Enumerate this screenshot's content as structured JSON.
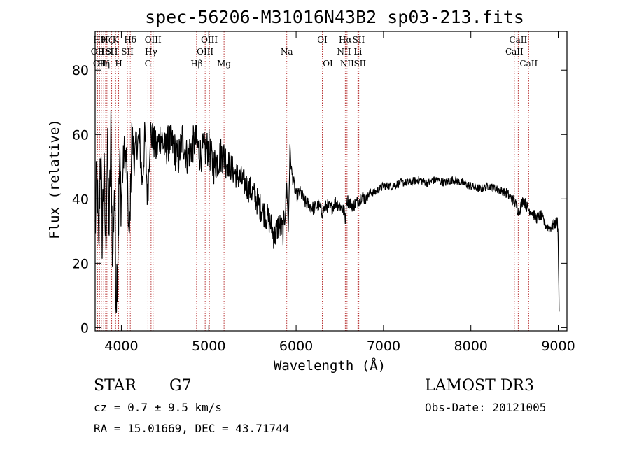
{
  "chart_data": {
    "type": "line",
    "title": "spec-56206-M31016N43B2_sp03-213.fits",
    "xlabel": "Wavelength (Å)",
    "ylabel": "Flux (relative)",
    "xlim": [
      3700,
      9100
    ],
    "ylim": [
      -1,
      92
    ],
    "xticks": [
      4000,
      5000,
      6000,
      7000,
      8000,
      9000
    ],
    "xtick_labels": [
      "4000",
      "5000",
      "6000",
      "7000",
      "8000",
      "9000"
    ],
    "yticks": [
      0,
      20,
      40,
      60,
      80
    ],
    "ytick_labels": [
      "0",
      "20",
      "40",
      "60",
      "80"
    ],
    "line_color": "#000000",
    "marker_color": "#b22222",
    "series": [
      {
        "name": "spectrum",
        "x": [
          3700,
          3720,
          3740,
          3760,
          3780,
          3800,
          3820,
          3840,
          3860,
          3880,
          3900,
          3920,
          3940,
          3960,
          3980,
          4000,
          4030,
          4060,
          4090,
          4120,
          4150,
          4180,
          4210,
          4240,
          4270,
          4300,
          4330,
          4360,
          4400,
          4450,
          4500,
          4550,
          4600,
          4650,
          4700,
          4750,
          4800,
          4850,
          4900,
          4950,
          5000,
          5050,
          5100,
          5150,
          5200,
          5300,
          5400,
          5500,
          5600,
          5700,
          5750,
          5800,
          5850,
          5880,
          5895,
          5910,
          5930,
          5950,
          6000,
          6050,
          6100,
          6150,
          6200,
          6250,
          6300,
          6350,
          6400,
          6450,
          6500,
          6550,
          6563,
          6580,
          6600,
          6650,
          6700,
          6750,
          6800,
          6850,
          6900,
          7000,
          7100,
          7200,
          7300,
          7400,
          7500,
          7600,
          7700,
          7800,
          7900,
          8000,
          8100,
          8200,
          8300,
          8400,
          8500,
          8550,
          8600,
          8650,
          8700,
          8750,
          8800,
          8850,
          8900,
          8950,
          8990,
          9000,
          9010
        ],
        "y": [
          30,
          48,
          22,
          58,
          30,
          50,
          25,
          57,
          30,
          60,
          20,
          45,
          10,
          25,
          50,
          40,
          55,
          52,
          25,
          60,
          52,
          58,
          57,
          45,
          60,
          40,
          61,
          58,
          55,
          60,
          55,
          58,
          56,
          52,
          59,
          53,
          56,
          58,
          54,
          55,
          56,
          50,
          52,
          54,
          52,
          48,
          45,
          42,
          37,
          33,
          28,
          32,
          30,
          38,
          45,
          30,
          55,
          48,
          41,
          42,
          39,
          38,
          37,
          38,
          36,
          38,
          37,
          39,
          38,
          36,
          34,
          40,
          39,
          38,
          39,
          41,
          40,
          42,
          42,
          44,
          44,
          45,
          45,
          46,
          45,
          46,
          45,
          46,
          45,
          44,
          43,
          44,
          43,
          42,
          39,
          36,
          40,
          37,
          36,
          34,
          35,
          32,
          31,
          32,
          33,
          28,
          5
        ]
      }
    ],
    "line_markers": [
      {
        "x": 3727,
        "label": "OII",
        "row": 1
      },
      {
        "x": 3750,
        "label": "Hθ",
        "row": 0
      },
      {
        "x": 3771,
        "label": "OIII",
        "row": 2
      },
      {
        "x": 3798,
        "label": "Hη",
        "row": 2
      },
      {
        "x": 3820,
        "label": "HeI",
        "row": 1
      },
      {
        "x": 3835,
        "label": "Hζ",
        "row": 0
      },
      {
        "x": 3889,
        "label": "SII",
        "row": 1
      },
      {
        "x": 3934,
        "label": "K",
        "row": 0
      },
      {
        "x": 3969,
        "label": "H",
        "row": 2
      },
      {
        "x": 4102,
        "label": "Hδ",
        "row": 0
      },
      {
        "x": 4069,
        "label": "SII",
        "row": 1
      },
      {
        "x": 4304,
        "label": "G",
        "row": 2
      },
      {
        "x": 4340,
        "label": "Hγ",
        "row": 1
      },
      {
        "x": 4363,
        "label": "OIII",
        "row": 0
      },
      {
        "x": 4861,
        "label": "Hβ",
        "row": 2
      },
      {
        "x": 4959,
        "label": "OIII",
        "row": 1
      },
      {
        "x": 5007,
        "label": "OIII",
        "row": 0
      },
      {
        "x": 5175,
        "label": "Mg",
        "row": 2
      },
      {
        "x": 5893,
        "label": "Na",
        "row": 1
      },
      {
        "x": 6300,
        "label": "OI",
        "row": 0
      },
      {
        "x": 6364,
        "label": "OI",
        "row": 2
      },
      {
        "x": 6548,
        "label": "NII",
        "row": 1
      },
      {
        "x": 6563,
        "label": "Hα",
        "row": 0
      },
      {
        "x": 6583,
        "label": "NII",
        "row": 2
      },
      {
        "x": 6707,
        "label": "Li",
        "row": 1
      },
      {
        "x": 6716,
        "label": "SII",
        "row": 0
      },
      {
        "x": 6731,
        "label": "SII",
        "row": 2
      },
      {
        "x": 8498,
        "label": "CaII",
        "row": 1
      },
      {
        "x": 8542,
        "label": "CaII",
        "row": 0
      },
      {
        "x": 8662,
        "label": "CaII",
        "row": 2
      }
    ]
  },
  "info": {
    "object_class": "STAR",
    "subclass": "G7",
    "survey": "LAMOST DR3",
    "redshift": "cz = 0.7 ± 9.5 km/s",
    "obs_date": "Obs-Date: 20121005",
    "coords": "RA =  15.01669, DEC =  43.71744"
  }
}
